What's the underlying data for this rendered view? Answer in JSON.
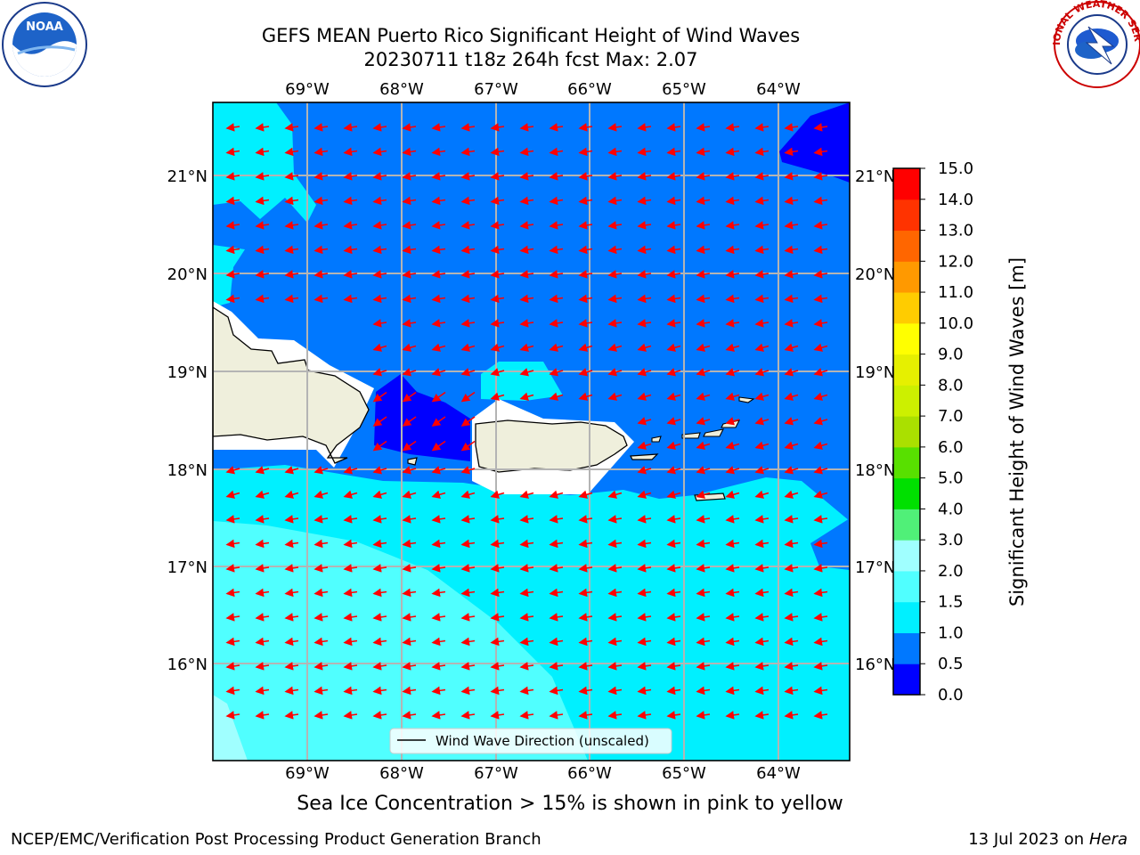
{
  "title": {
    "line1": "GEFS MEAN Puerto Rico Significant Height of Wind Waves",
    "line2": "20230711 t18z 264h fcst   Max: 2.07"
  },
  "map": {
    "lon_range": [
      -70.0,
      -63.3
    ],
    "lat_range": [
      15.0,
      21.75
    ],
    "lon_ticks": [
      "69°W",
      "68°W",
      "67°W",
      "66°W",
      "65°W",
      "64°W"
    ],
    "lat_ticks": [
      "21°N",
      "20°N",
      "19°N",
      "18°N",
      "17°N",
      "16°N"
    ],
    "gridlines": true,
    "regions": [
      "Hispaniola (east)",
      "Puerto Rico",
      "Virgin Islands",
      "Mona Island",
      "St. Croix"
    ],
    "wave_direction": "westward, from the east",
    "legend_label": "Wind Wave Direction (unscaled)"
  },
  "colorbar": {
    "label": "Significant Height of Wind Waves [m]",
    "ticks": [
      "0.0",
      "0.5",
      "1.0",
      "1.5",
      "2.0",
      "3.0",
      "4.0",
      "5.0",
      "6.0",
      "7.0",
      "8.0",
      "9.0",
      "10.0",
      "11.0",
      "12.0",
      "13.0",
      "14.0",
      "15.0"
    ],
    "colors": [
      "#0000ff",
      "#0078ff",
      "#00f0ff",
      "#50ffff",
      "#a0ffff",
      "#50f078",
      "#00e000",
      "#58e000",
      "#aae000",
      "#ccf000",
      "#e6f000",
      "#ffff00",
      "#ffcc00",
      "#ff9900",
      "#ff6600",
      "#ff3300",
      "#ff0000"
    ]
  },
  "logos": {
    "left": "NOAA",
    "right": "NATIONAL WEATHER SERVICE"
  },
  "ice_note": "Sea Ice Concentration > 15% is shown in pink to yellow",
  "footer": {
    "left": "NCEP/EMC/Verification Post Processing Product Generation Branch",
    "date": "13 Jul 2023 on ",
    "machine": "Hera"
  }
}
